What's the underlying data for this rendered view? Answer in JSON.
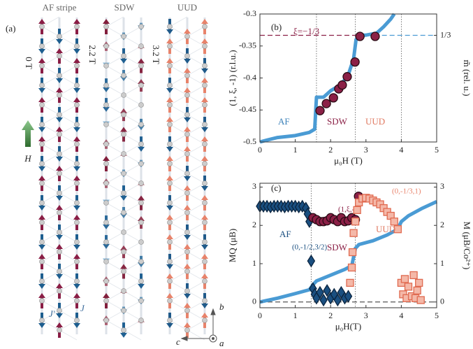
{
  "diagram": {
    "label": "(a)",
    "columns": [
      {
        "title": "AF stripe",
        "field": "0 T"
      },
      {
        "title": "SDW",
        "field": "2.2 T"
      },
      {
        "title": "UUD",
        "field": "3.2 T"
      }
    ],
    "field_label": "H",
    "couplings": [
      "J'",
      "J"
    ],
    "axes": [
      "b",
      "c",
      "a"
    ]
  },
  "chart_data": [
    {
      "type": "line",
      "annotations": [
        "(b)",
        "ξ=−1/3",
        "AF",
        "SDW",
        "UUD"
      ],
      "xlabel": "μ₀H (T)",
      "ylabel": "(1, ξ, -1) (r.l.u.)",
      "y2label": "m̃ (rel. u.)",
      "xlim": [
        0,
        5
      ],
      "ylim": [
        -0.5,
        -0.3
      ],
      "y2lim": [
        0,
        0.4
      ],
      "xticks": [
        0,
        1,
        2,
        3,
        4,
        5
      ],
      "yticks": [
        -0.5,
        -0.45,
        -0.4,
        -0.35,
        -0.3
      ],
      "y2ticks": [
        {
          "value": 0.3333,
          "label": "1/3"
        }
      ],
      "hlines": [
        {
          "value": -0.3333,
          "from": 0,
          "to": 2.8,
          "color": "#8b2046"
        },
        {
          "value": -0.3333,
          "from": 2.8,
          "to": 5,
          "color": "#4a9bd4"
        }
      ],
      "vlines": [
        1.6,
        2.7,
        4.0
      ],
      "series": [
        {
          "color": "#4a9bd4",
          "x": [
            0,
            0.2,
            0.5,
            1.0,
            1.4,
            1.55,
            1.6,
            1.8,
            2.0,
            2.3,
            2.5,
            2.65,
            2.72,
            2.8,
            3.0,
            3.3,
            3.5,
            3.7,
            3.8
          ],
          "values": [
            -0.5,
            -0.497,
            -0.493,
            -0.49,
            -0.485,
            -0.48,
            -0.43,
            -0.43,
            -0.42,
            -0.41,
            -0.395,
            -0.37,
            -0.34,
            -0.333,
            -0.333,
            -0.33,
            -0.32,
            -0.308,
            -0.3
          ]
        },
        {
          "color": "#8b2046",
          "marker": "circle",
          "x": [
            1.7,
            1.88,
            2.08,
            2.23,
            2.33,
            2.47,
            2.69,
            2.83,
            3.26
          ],
          "values": [
            -0.451,
            -0.44,
            -0.431,
            -0.417,
            -0.411,
            -0.398,
            -0.375,
            -0.335,
            -0.335
          ]
        }
      ]
    },
    {
      "type": "line",
      "annotations": [
        "(c)",
        "AF",
        "SDW",
        "UUD"
      ],
      "xlabel": "μ₀H(T)",
      "ylabel": "MQ (μB)",
      "y2label": "M (μB/Co²⁺)",
      "xlim": [
        0,
        5
      ],
      "ylim": [
        -0.15,
        3.1
      ],
      "y2lim": [
        -0.15,
        3.1
      ],
      "xticks": [
        0,
        1,
        2,
        3,
        4,
        5
      ],
      "yticks": [
        0,
        1,
        2,
        3
      ],
      "y2ticks": [
        0,
        1,
        2,
        3
      ],
      "hlines": [
        {
          "value": 0,
          "from": 0,
          "to": 5,
          "color": "#555555"
        }
      ],
      "vlines": [
        1.45,
        2.7
      ],
      "series": [
        {
          "color": "#4a9bd4",
          "axis": "y2",
          "x": [
            0,
            0.5,
            1.0,
            1.4,
            1.5,
            1.6,
            2.0,
            2.4,
            2.6,
            2.7,
            2.8,
            3.2,
            3.6,
            3.9,
            4.0,
            4.2,
            4.6,
            5.0
          ],
          "values": [
            0,
            0.1,
            0.22,
            0.32,
            0.45,
            0.55,
            0.7,
            0.85,
            0.95,
            1.4,
            1.5,
            1.6,
            1.75,
            1.9,
            2.1,
            2.25,
            2.45,
            2.62
          ]
        },
        {
          "name": "(0,-1/2,3/2)",
          "color": "#1a4f80",
          "marker": "diamond",
          "x": [
            0,
            0.1,
            0.2,
            0.3,
            0.4,
            0.5,
            0.6,
            0.7,
            0.8,
            0.9,
            1.0,
            1.1,
            1.2,
            1.3,
            1.35,
            1.4,
            1.45,
            1.5,
            1.55,
            1.6,
            1.7,
            1.8,
            1.9,
            2.0,
            2.1,
            2.2,
            2.3,
            2.4,
            2.5
          ],
          "values": [
            2.5,
            2.5,
            2.5,
            2.48,
            2.5,
            2.5,
            2.5,
            2.48,
            2.5,
            2.5,
            2.5,
            2.48,
            2.5,
            2.45,
            2.3,
            2.1,
            1.07,
            0.35,
            0.2,
            0.1,
            0.25,
            0.05,
            0.3,
            0.1,
            0.2,
            0.05,
            0.25,
            0.1,
            0.15
          ]
        },
        {
          "name": "(1,ξ,-1)",
          "color": "#8b2046",
          "marker": "circle",
          "x": [
            1.5,
            1.6,
            1.7,
            1.8,
            1.9,
            2.0,
            2.1,
            2.2,
            2.3,
            2.4,
            2.5,
            2.6,
            2.7,
            2.79
          ],
          "values": [
            2.2,
            2.15,
            2.1,
            2.1,
            2.12,
            2.2,
            2.15,
            2.1,
            2.2,
            2.1,
            2.12,
            2.2,
            2.15,
            2.76
          ]
        },
        {
          "name": "(0,-1/3,1)",
          "color": "#e8836b",
          "marker": "square",
          "x": [
            2.55,
            2.6,
            2.62,
            2.65,
            2.7,
            2.75,
            2.8,
            2.9,
            3.0,
            3.1,
            3.2,
            3.3,
            3.4,
            3.5,
            3.6,
            3.7,
            3.8,
            3.9,
            4.0,
            4.05,
            4.1,
            4.15,
            4.2,
            4.3,
            4.35,
            4.4,
            4.45,
            4.5,
            4.55
          ],
          "values": [
            0.5,
            0.9,
            1.3,
            1.8,
            2.1,
            2.4,
            2.6,
            2.7,
            2.72,
            2.7,
            2.65,
            2.6,
            2.55,
            2.45,
            2.35,
            2.25,
            2.1,
            1.9,
            0.5,
            0.2,
            0.6,
            0.1,
            0.4,
            0.15,
            0.7,
            0.1,
            0.3,
            0.5,
            0.05
          ]
        }
      ]
    }
  ]
}
